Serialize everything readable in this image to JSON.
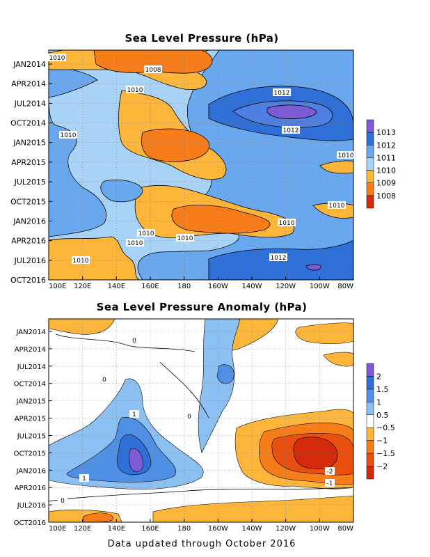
{
  "chart_data": [
    {
      "type": "heatmap",
      "title": "Sea Level Pressure (hPa)",
      "xlabel": "",
      "ylabel": "",
      "x_ticks": [
        "100E",
        "120E",
        "140E",
        "160E",
        "180",
        "160W",
        "140W",
        "120W",
        "100W",
        "80W"
      ],
      "y_ticks": [
        "JAN2014",
        "APR2014",
        "JUL2014",
        "OCT2014",
        "JAN2015",
        "APR2015",
        "JUL2015",
        "OCT2015",
        "JAN2016",
        "APR2016",
        "JUL2016",
        "OCT2016"
      ],
      "grid": true,
      "legend_levels": [
        "1013",
        "1012",
        "1011",
        "1010",
        "1009",
        "1008"
      ],
      "legend_colors": [
        "#7d5ad6",
        "#2e6fd8",
        "#69a8ee",
        "#a8d3f7",
        "#fdb63a",
        "#f77c1a",
        "#d42a0c"
      ],
      "contour_labels": [
        "1010",
        "1008",
        "1010",
        "1012",
        "1012",
        "1010",
        "1010",
        "1010",
        "1010",
        "1010",
        "1010",
        "1010",
        "1012",
        "1010"
      ],
      "regions": [
        {
          "level": 1011,
          "lon": [
            100,
            280
          ],
          "time": [
            "JAN2014",
            "OCT2016"
          ]
        },
        {
          "level": 1009,
          "lon": [
            100,
            140
          ],
          "time": [
            "JAN2014",
            "JUL2014"
          ]
        },
        {
          "level": 1009,
          "lon": [
            140,
            200
          ],
          "time": [
            "JAN2014",
            "APR2015"
          ]
        },
        {
          "level": 1009,
          "lon": [
            150,
            200
          ],
          "time": [
            "OCT2015",
            "OCT2016"
          ]
        },
        {
          "level": 1009,
          "lon": [
            100,
            140
          ],
          "time": [
            "APR2016",
            "OCT2016"
          ]
        },
        {
          "level": 1008,
          "lon": [
            130,
            200
          ],
          "time": [
            "JAN2014",
            "APR2014"
          ]
        },
        {
          "level": 1008,
          "lon": [
            155,
            190
          ],
          "time": [
            "OCT2014",
            "JAN2015"
          ]
        },
        {
          "level": 1008,
          "lon": [
            170,
            210
          ],
          "time": [
            "OCT2015",
            "JAN2016"
          ]
        },
        {
          "level": 1012,
          "lon": [
            215,
            280
          ],
          "time": [
            "APR2014",
            "JAN2015"
          ]
        },
        {
          "level": 1013,
          "lon": [
            225,
            260
          ],
          "time": [
            "JUL2014",
            "OCT2014"
          ]
        },
        {
          "level": 1012,
          "lon": [
            210,
            280
          ],
          "time": [
            "APR2016",
            "OCT2016"
          ]
        }
      ]
    },
    {
      "type": "heatmap",
      "title": "Sea Level Pressure Anomaly (hPa)",
      "xlabel": "",
      "ylabel": "",
      "x_ticks": [
        "100E",
        "120E",
        "140E",
        "160E",
        "180",
        "160W",
        "140W",
        "120W",
        "100W",
        "80W"
      ],
      "y_ticks": [
        "JAN2014",
        "APR2014",
        "JUL2014",
        "OCT2014",
        "JAN2015",
        "APR2015",
        "JUL2015",
        "OCT2015",
        "JAN2016",
        "APR2016",
        "JUL2016",
        "OCT2016"
      ],
      "grid": true,
      "legend_levels": [
        "2",
        "1.5",
        "1",
        "0.5",
        "−0.5",
        "−1",
        "−1.5",
        "−2"
      ],
      "legend_colors": [
        "#7d5ad6",
        "#2e6fd8",
        "#4f8fe4",
        "#8cc0f2",
        "#ffffff",
        "#fdb63a",
        "#f77c1a",
        "#e9500f",
        "#d42a0c"
      ],
      "contour_labels": [
        "0",
        "0",
        "1",
        "0",
        "1",
        "0",
        "-2",
        "-1"
      ],
      "regions": [
        {
          "level": 1.0,
          "lon": [
            130,
            175
          ],
          "time": [
            "JUL2015",
            "APR2016"
          ]
        },
        {
          "level": 1.5,
          "lon": [
            140,
            165
          ],
          "time": [
            "OCT2015",
            "JAN2016"
          ]
        },
        {
          "level": 2.0,
          "lon": [
            145,
            155
          ],
          "time": [
            "OCT2015",
            "JAN2016"
          ]
        },
        {
          "level": 0.5,
          "lon": [
            200,
            225
          ],
          "time": [
            "JAN2014",
            "APR2015"
          ]
        },
        {
          "level": -1.0,
          "lon": [
            225,
            280
          ],
          "time": [
            "APR2015",
            "APR2016"
          ]
        },
        {
          "level": -2.0,
          "lon": [
            250,
            275
          ],
          "time": [
            "JUL2015",
            "JAN2016"
          ]
        },
        {
          "level": -0.5,
          "lon": [
            100,
            280
          ],
          "time": [
            "JUL2016",
            "OCT2016"
          ]
        }
      ]
    }
  ],
  "footer": "Data updated through October 2016"
}
